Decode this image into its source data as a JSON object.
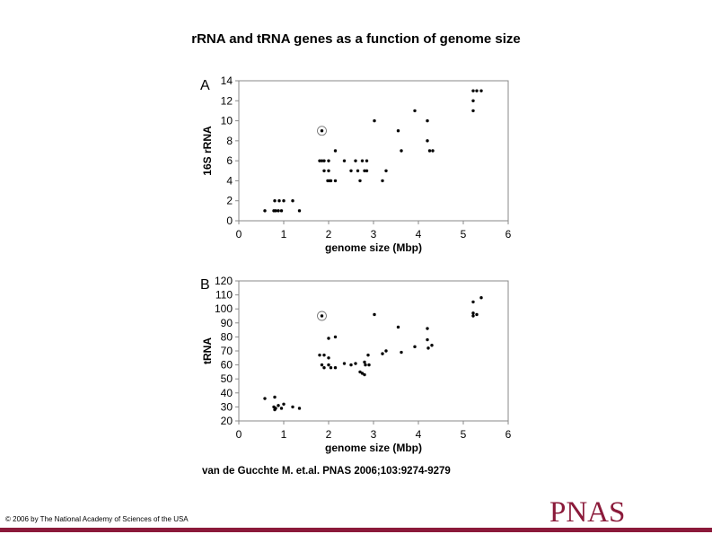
{
  "title": "rRNA and tRNA genes as a function of genome size",
  "citation": "van de Gucchte M. et.al. PNAS 2006;103:9274-9279",
  "copyright": "© 2006 by The National Academy of Sciences of the USA",
  "logo": "PNAS",
  "colors": {
    "logo": "#8b1a3a",
    "points": "#000000",
    "frame": "#888888"
  },
  "chart_data": [
    {
      "type": "scatter",
      "panel_label": "A",
      "xlabel": "genome size (Mbp)",
      "ylabel": "16S rRNA",
      "xlim": [
        0,
        6
      ],
      "ylim": [
        0,
        14
      ],
      "xticks": [
        0,
        1,
        2,
        3,
        4,
        5,
        6
      ],
      "yticks": [
        0,
        2,
        4,
        6,
        8,
        10,
        12,
        14
      ],
      "grid": false,
      "highlighted": [
        [
          1.85,
          9
        ]
      ],
      "points": [
        [
          0.58,
          1
        ],
        [
          0.78,
          1
        ],
        [
          0.82,
          1
        ],
        [
          0.88,
          1
        ],
        [
          0.95,
          1
        ],
        [
          1.35,
          1
        ],
        [
          0.8,
          2
        ],
        [
          0.9,
          2
        ],
        [
          1.0,
          2
        ],
        [
          1.2,
          2
        ],
        [
          1.85,
          9
        ],
        [
          1.8,
          6
        ],
        [
          1.85,
          6
        ],
        [
          1.9,
          6
        ],
        [
          2.0,
          6
        ],
        [
          1.9,
          5
        ],
        [
          2.0,
          5
        ],
        [
          1.98,
          4
        ],
        [
          2.02,
          4
        ],
        [
          2.05,
          4
        ],
        [
          2.15,
          4
        ],
        [
          2.15,
          7
        ],
        [
          2.35,
          6
        ],
        [
          2.6,
          6
        ],
        [
          2.75,
          6
        ],
        [
          2.85,
          6
        ],
        [
          2.5,
          5
        ],
        [
          2.65,
          5
        ],
        [
          2.8,
          5
        ],
        [
          2.85,
          5
        ],
        [
          2.7,
          4
        ],
        [
          3.02,
          10
        ],
        [
          3.2,
          4
        ],
        [
          3.28,
          5
        ],
        [
          3.55,
          9
        ],
        [
          3.62,
          7
        ],
        [
          3.92,
          11
        ],
        [
          4.2,
          10
        ],
        [
          4.2,
          8
        ],
        [
          4.25,
          7
        ],
        [
          4.32,
          7
        ],
        [
          5.22,
          13
        ],
        [
          5.3,
          13
        ],
        [
          5.4,
          13
        ],
        [
          5.22,
          12
        ],
        [
          5.22,
          11
        ]
      ]
    },
    {
      "type": "scatter",
      "panel_label": "B",
      "xlabel": "genome size (Mbp)",
      "ylabel": "tRNA",
      "xlim": [
        0,
        6
      ],
      "ylim": [
        20,
        120
      ],
      "xticks": [
        0,
        1,
        2,
        3,
        4,
        5,
        6
      ],
      "yticks": [
        20,
        30,
        40,
        50,
        60,
        70,
        80,
        90,
        100,
        110,
        120
      ],
      "grid": false,
      "highlighted": [
        [
          1.85,
          95
        ]
      ],
      "points": [
        [
          0.58,
          36
        ],
        [
          0.8,
          37
        ],
        [
          0.78,
          30
        ],
        [
          0.8,
          28
        ],
        [
          0.82,
          29
        ],
        [
          0.88,
          31
        ],
        [
          0.95,
          29
        ],
        [
          1.0,
          32
        ],
        [
          1.2,
          30
        ],
        [
          1.35,
          29
        ],
        [
          1.85,
          95
        ],
        [
          1.8,
          67
        ],
        [
          1.9,
          67
        ],
        [
          2.0,
          65
        ],
        [
          1.85,
          60
        ],
        [
          1.9,
          58
        ],
        [
          2.0,
          60
        ],
        [
          2.05,
          58
        ],
        [
          2.15,
          58
        ],
        [
          2.0,
          79
        ],
        [
          2.15,
          80
        ],
        [
          2.35,
          61
        ],
        [
          2.5,
          60
        ],
        [
          2.6,
          61
        ],
        [
          2.7,
          55
        ],
        [
          2.75,
          54
        ],
        [
          2.8,
          53
        ],
        [
          2.82,
          60
        ],
        [
          2.9,
          60
        ],
        [
          2.88,
          67
        ],
        [
          2.8,
          62
        ],
        [
          3.02,
          96
        ],
        [
          3.2,
          68
        ],
        [
          3.28,
          70
        ],
        [
          3.55,
          87
        ],
        [
          3.62,
          69
        ],
        [
          3.92,
          73
        ],
        [
          4.2,
          86
        ],
        [
          4.2,
          78
        ],
        [
          4.22,
          72
        ],
        [
          4.3,
          74
        ],
        [
          5.22,
          105
        ],
        [
          5.22,
          97
        ],
        [
          5.22,
          95
        ],
        [
          5.3,
          96
        ],
        [
          5.4,
          108
        ]
      ]
    }
  ]
}
